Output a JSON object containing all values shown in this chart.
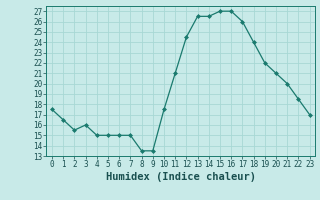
{
  "x": [
    0,
    1,
    2,
    3,
    4,
    5,
    6,
    7,
    8,
    9,
    10,
    11,
    12,
    13,
    14,
    15,
    16,
    17,
    18,
    19,
    20,
    21,
    22,
    23
  ],
  "y": [
    17.5,
    16.5,
    15.5,
    16.0,
    15.0,
    15.0,
    15.0,
    15.0,
    13.5,
    13.5,
    17.5,
    21.0,
    24.5,
    26.5,
    26.5,
    27.0,
    27.0,
    26.0,
    24.0,
    22.0,
    21.0,
    20.0,
    18.5,
    17.0
  ],
  "xlabel": "Humidex (Indice chaleur)",
  "ylim": [
    13,
    27.5
  ],
  "xlim": [
    -0.5,
    23.5
  ],
  "yticks": [
    13,
    14,
    15,
    16,
    17,
    18,
    19,
    20,
    21,
    22,
    23,
    24,
    25,
    26,
    27
  ],
  "xticks": [
    0,
    1,
    2,
    3,
    4,
    5,
    6,
    7,
    8,
    9,
    10,
    11,
    12,
    13,
    14,
    15,
    16,
    17,
    18,
    19,
    20,
    21,
    22,
    23
  ],
  "line_color": "#1a7a6e",
  "marker_color": "#1a7a6e",
  "bg_color": "#c8eae8",
  "grid_color": "#a8d8d4",
  "tick_fontsize": 5.5,
  "label_fontsize": 7.5
}
